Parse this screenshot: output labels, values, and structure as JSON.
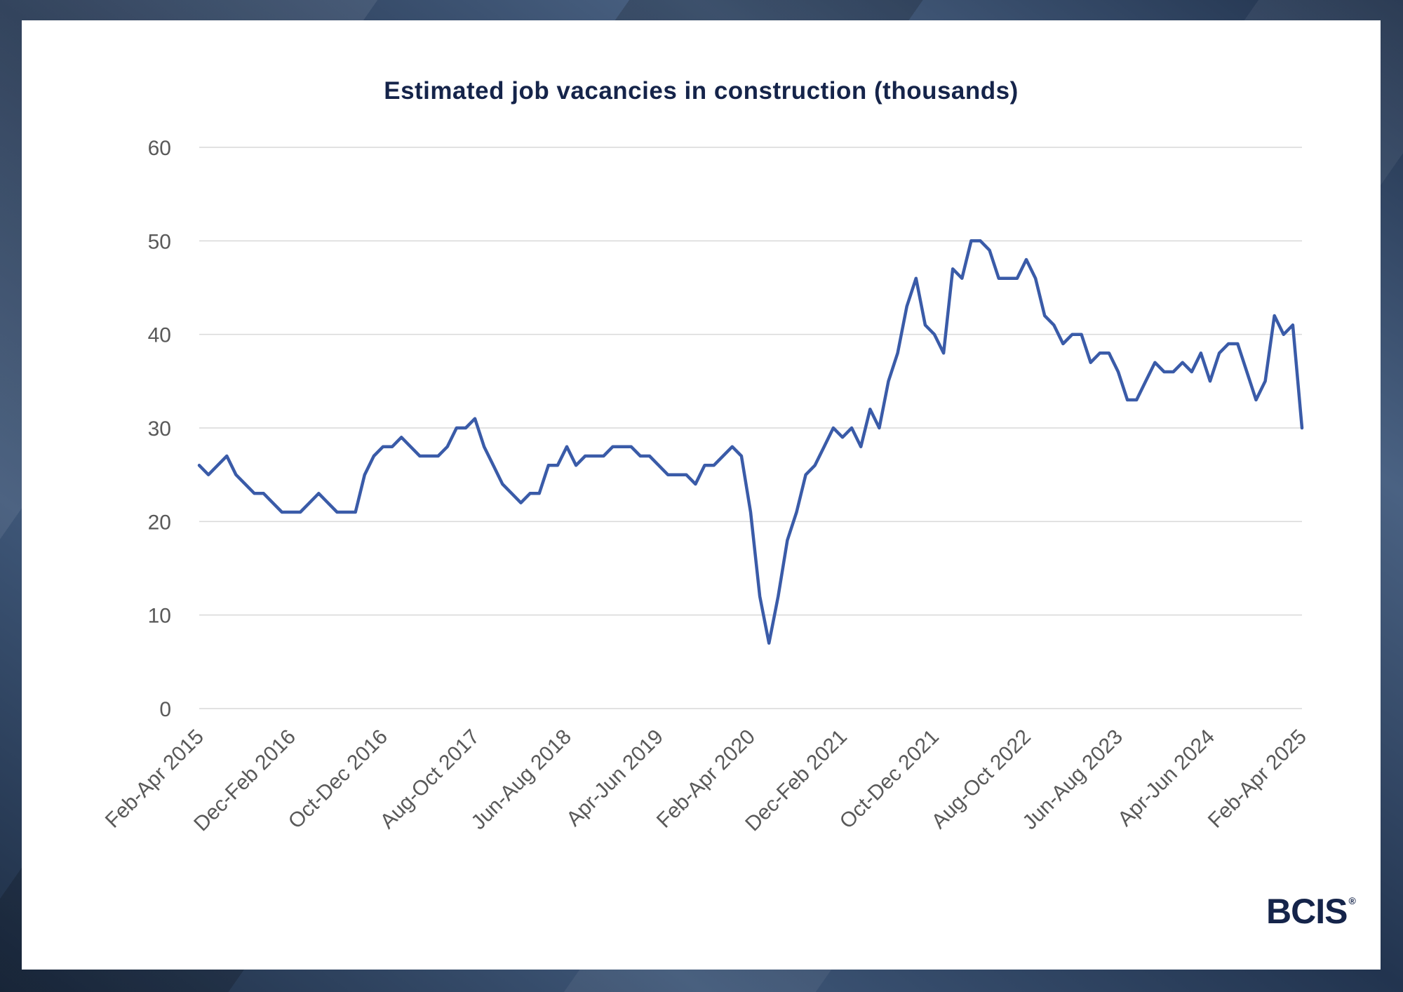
{
  "brand": {
    "name": "BCIS",
    "mark": "®"
  },
  "colors": {
    "line": "#3a5ba8",
    "title": "#15244a",
    "grid": "#d9d9d9",
    "tick": "#595959"
  },
  "chart_data": {
    "type": "line",
    "title": "Estimated job vacancies in construction (thousands)",
    "xlabel": "",
    "ylabel": "",
    "ylim": [
      0,
      60
    ],
    "yticks": [
      0,
      10,
      20,
      30,
      40,
      50,
      60
    ],
    "grid": true,
    "x_tick_labels": [
      "Feb-Apr 2015",
      "Dec-Feb 2016",
      "Oct-Dec 2016",
      "Aug-Oct 2017",
      "Jun-Aug 2018",
      "Apr-Jun 2019",
      "Feb-Apr 2020",
      "Dec-Feb 2021",
      "Oct-Dec 2021",
      "Aug-Oct 2022",
      "Jun-Aug 2023",
      "Apr-Jun 2024",
      "Feb-Apr 2025"
    ],
    "series": [
      {
        "name": "Estimated job vacancies in construction (thousands)",
        "values": [
          26,
          25,
          26,
          27,
          25,
          24,
          23,
          23,
          22,
          21,
          21,
          21,
          22,
          23,
          22,
          21,
          21,
          21,
          25,
          27,
          28,
          28,
          29,
          28,
          27,
          27,
          27,
          28,
          30,
          30,
          31,
          28,
          26,
          24,
          23,
          22,
          23,
          23,
          26,
          26,
          28,
          26,
          27,
          27,
          27,
          28,
          28,
          28,
          27,
          27,
          26,
          25,
          25,
          25,
          24,
          26,
          26,
          27,
          28,
          27,
          21,
          12,
          7,
          12,
          18,
          21,
          25,
          26,
          28,
          30,
          29,
          30,
          28,
          32,
          30,
          35,
          38,
          43,
          46,
          41,
          40,
          38,
          47,
          46,
          50,
          50,
          49,
          46,
          46,
          46,
          48,
          46,
          42,
          41,
          39,
          40,
          40,
          37,
          38,
          38,
          36,
          33,
          33,
          35,
          37,
          36,
          36,
          37,
          36,
          38,
          35,
          38,
          39,
          39,
          36,
          33,
          35,
          42,
          40,
          41,
          30
        ]
      }
    ]
  }
}
